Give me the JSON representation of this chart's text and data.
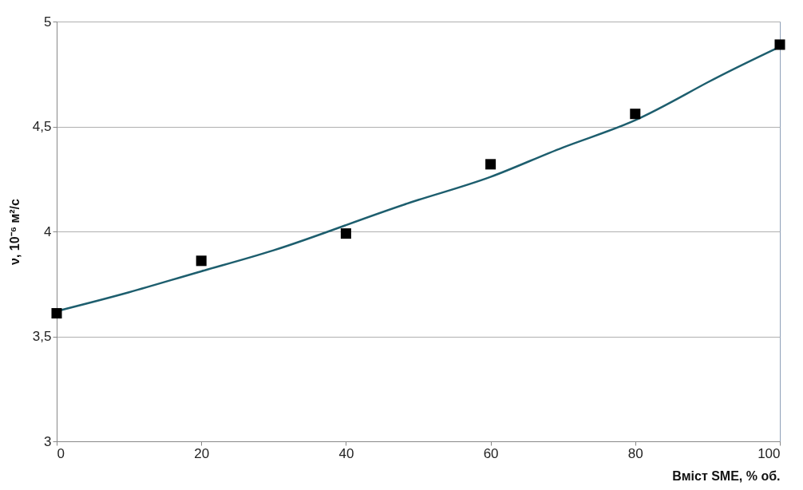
{
  "chart_data": {
    "type": "scatter",
    "xlabel": "Вміст SME, % об.",
    "ylabel": "ν, 10⁻⁶ м²/с",
    "xlim": [
      0,
      100
    ],
    "xticks": [
      0,
      20,
      40,
      60,
      80,
      100
    ],
    "ylim": [
      3,
      5
    ],
    "yticks": [
      3,
      {
        "value": 3.5,
        "label": "3,5"
      },
      4,
      {
        "value": 4.5,
        "label": "4,5"
      },
      5
    ],
    "grid": "y",
    "series": [
      {
        "marker": "square",
        "color": "#000000",
        "x": [
          0,
          20,
          40,
          60,
          80,
          100
        ],
        "values": [
          3.61,
          3.86,
          3.99,
          4.32,
          4.56,
          4.89
        ]
      },
      {
        "type": "line",
        "marker": "none",
        "line_style": "solid",
        "color": "#1d5e6e",
        "x": [
          0,
          10,
          20,
          30,
          40,
          50,
          60,
          70,
          80,
          90,
          100
        ],
        "values": [
          3.62,
          3.71,
          3.81,
          3.91,
          4.03,
          4.15,
          4.26,
          4.4,
          4.53,
          4.71,
          4.88
        ]
      }
    ]
  }
}
